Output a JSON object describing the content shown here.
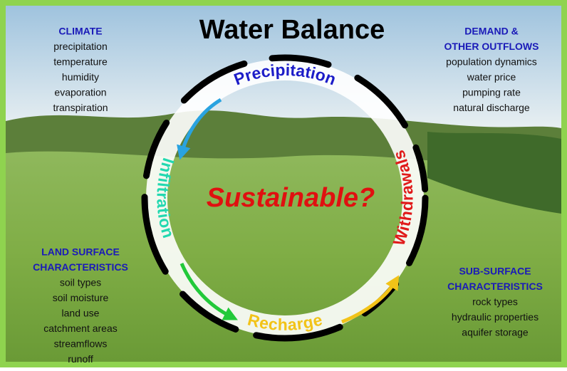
{
  "title": "Water Balance",
  "center": "Sustainable?",
  "cycle": {
    "top": "Precipitation",
    "right": "Withdrawals",
    "bottom": "Recharge",
    "left": "Infiltration"
  },
  "blocks": {
    "climate": {
      "heading": [
        "CLIMATE"
      ],
      "items": [
        "precipitation",
        "temperature",
        "humidity",
        "evaporation",
        "transpiration"
      ]
    },
    "demand": {
      "heading": [
        "DEMAND &",
        "OTHER OUTFLOWS"
      ],
      "items": [
        "population dynamics",
        "water price",
        "pumping rate",
        "natural discharge"
      ]
    },
    "land": {
      "heading": [
        "LAND SURFACE",
        "CHARACTERISTICS"
      ],
      "items": [
        "soil types",
        "soil moisture",
        "land use",
        "catchment areas",
        "streamflows",
        "runoff"
      ]
    },
    "subsurface": {
      "heading": [
        "SUB-SURFACE",
        "CHARACTERISTICS"
      ],
      "items": [
        "rock types",
        "hydraulic properties",
        "aquifer storage"
      ]
    }
  }
}
